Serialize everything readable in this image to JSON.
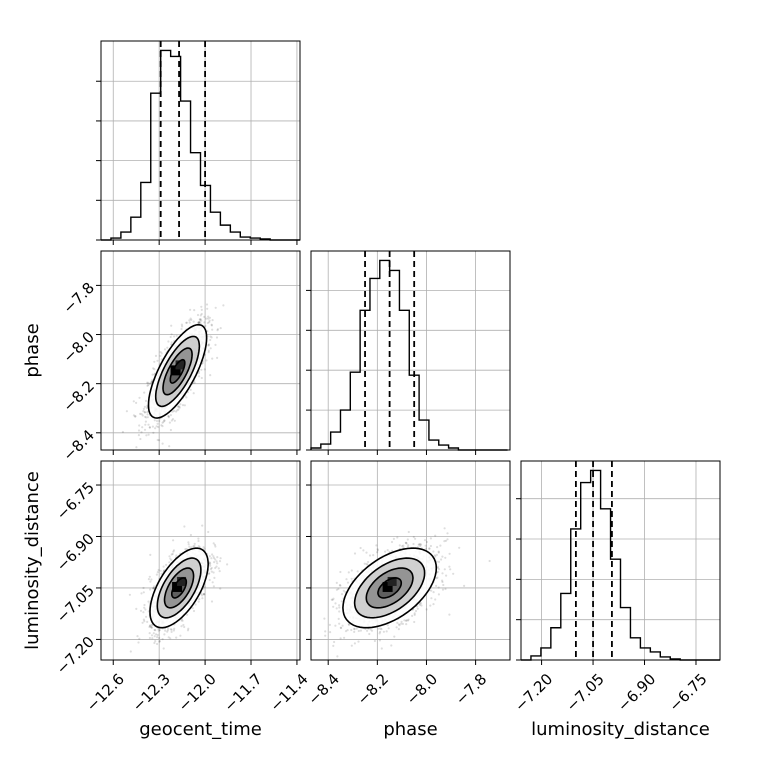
{
  "chart_data": {
    "type": "corner",
    "parameters": [
      "geocent_time",
      "phase",
      "luminosity_distance"
    ],
    "axes": {
      "geocent_time": {
        "range": [
          -12.68,
          -11.38
        ],
        "ticks": [
          -12.6,
          -12.3,
          -12.0,
          -11.7,
          -11.4
        ],
        "tick_labels": [
          "−12.6",
          "−12.3",
          "−12.0",
          "−11.7",
          "−11.4"
        ]
      },
      "phase": {
        "range": [
          -8.47,
          -7.66
        ],
        "ticks": [
          -8.4,
          -8.2,
          -8.0,
          -7.8
        ],
        "tick_labels": [
          "−8.4",
          "−8.2",
          "−8.0",
          "−7.8"
        ]
      },
      "luminosity_distance": {
        "range": [
          -7.26,
          -6.68
        ],
        "ticks": [
          -7.2,
          -7.05,
          -6.9,
          -6.75
        ],
        "tick_labels": [
          "−7.20",
          "−7.05",
          "−6.90",
          "−6.75"
        ]
      }
    },
    "histograms": [
      {
        "parameter": "geocent_time",
        "bin_edges": [
          -12.68,
          -12.615,
          -12.55,
          -12.485,
          -12.42,
          -12.355,
          -12.29,
          -12.225,
          -12.16,
          -12.095,
          -12.03,
          -11.965,
          -11.9,
          -11.835,
          -11.77,
          -11.705,
          -11.64,
          -11.575,
          -11.51,
          -11.445,
          -11.38
        ],
        "counts": [
          0,
          2,
          8,
          23,
          58,
          148,
          191,
          185,
          140,
          88,
          55,
          28,
          15,
          8,
          3,
          2,
          1,
          0,
          0,
          0
        ],
        "quantiles": [
          -12.29,
          -12.17,
          -12.0
        ]
      },
      {
        "parameter": "phase",
        "bin_edges": [
          -8.47,
          -8.43,
          -8.39,
          -8.35,
          -8.31,
          -8.27,
          -8.23,
          -8.19,
          -8.15,
          -8.11,
          -8.07,
          -8.03,
          -7.99,
          -7.95,
          -7.91,
          -7.87,
          -7.83,
          -7.79,
          -7.75,
          -7.71,
          -7.67
        ],
        "counts": [
          2,
          6,
          18,
          40,
          78,
          140,
          172,
          190,
          180,
          140,
          75,
          30,
          10,
          5,
          2,
          0,
          0,
          0,
          0,
          0
        ],
        "quantiles": [
          -8.25,
          -8.15,
          -8.05
        ]
      },
      {
        "parameter": "luminosity_distance",
        "bin_edges": [
          -7.26,
          -7.231,
          -7.202,
          -7.173,
          -7.144,
          -7.115,
          -7.086,
          -7.057,
          -7.028,
          -6.999,
          -6.97,
          -6.941,
          -6.912,
          -6.883,
          -6.854,
          -6.825,
          -6.796,
          -6.767,
          -6.738,
          -6.709,
          -6.68
        ],
        "counts": [
          0,
          4,
          12,
          32,
          66,
          130,
          176,
          188,
          150,
          100,
          52,
          22,
          12,
          8,
          3,
          1,
          0,
          0,
          0,
          0
        ],
        "quantiles": [
          -7.1,
          -7.05,
          -6.995
        ]
      }
    ],
    "joint": [
      {
        "x": "geocent_time",
        "y": "phase",
        "mean": [
          -12.18,
          -8.15
        ],
        "sd": [
          0.095,
          0.095
        ],
        "corr": 0.72
      },
      {
        "x": "geocent_time",
        "y": "luminosity_distance",
        "mean": [
          -12.17,
          -7.05
        ],
        "sd": [
          0.095,
          0.058
        ],
        "corr": 0.6
      },
      {
        "x": "phase",
        "y": "luminosity_distance",
        "mean": [
          -8.15,
          -7.05
        ],
        "sd": [
          0.095,
          0.058
        ],
        "corr": 0.5
      }
    ],
    "contour_levels_sigma": [
      0.5,
      1.0,
      1.5,
      2.0
    ],
    "grid": true
  }
}
